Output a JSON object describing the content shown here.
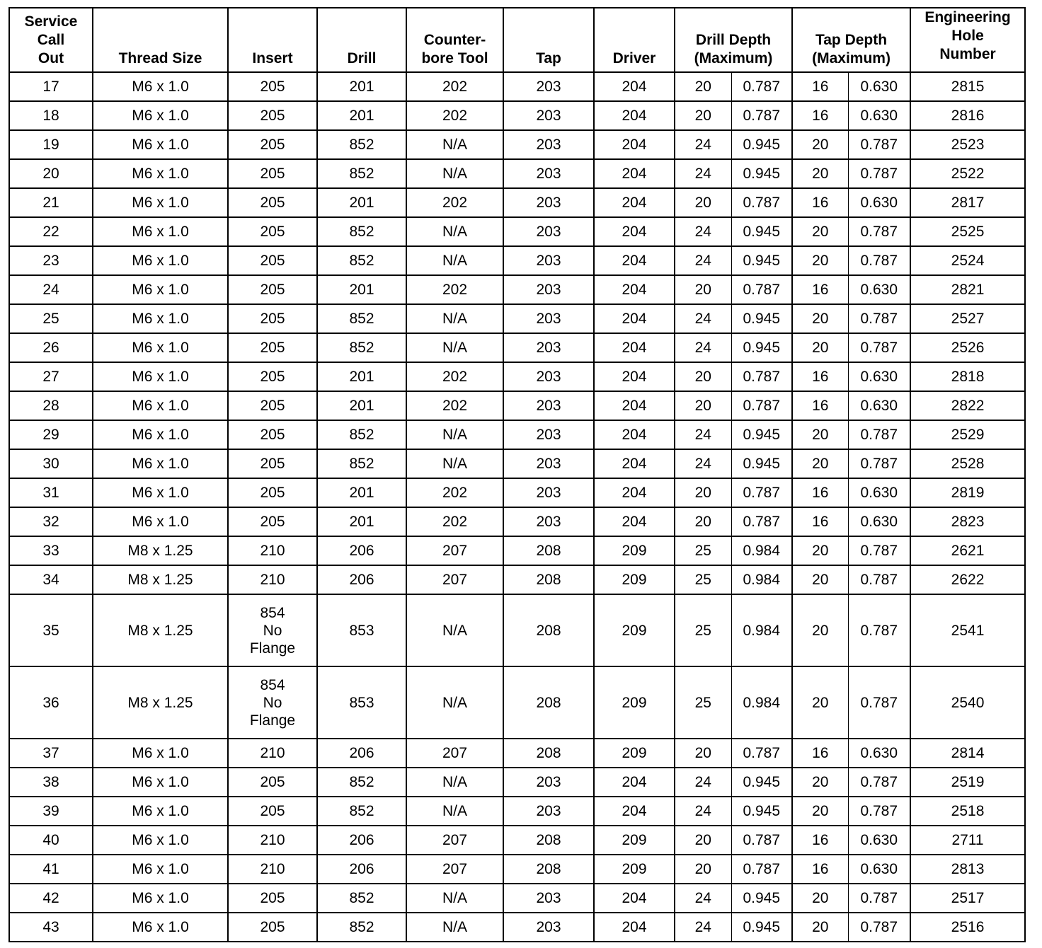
{
  "headers": [
    "Service\nCall\nOut",
    "Thread Size",
    "Insert",
    "Drill",
    "Counter-\nbore Tool",
    "Tap",
    "Driver",
    "Drill Depth\n(Maximum)",
    "Tap Depth\n(Maximum)",
    "Engineering\nHole\nNumber"
  ],
  "rows": [
    [
      "17",
      "M6 x 1.0",
      "205",
      "201",
      "202",
      "203",
      "204",
      "20",
      "0.787",
      "16",
      "0.630",
      "2815"
    ],
    [
      "18",
      "M6 x 1.0",
      "205",
      "201",
      "202",
      "203",
      "204",
      "20",
      "0.787",
      "16",
      "0.630",
      "2816"
    ],
    [
      "19",
      "M6 x 1.0",
      "205",
      "852",
      "N/A",
      "203",
      "204",
      "24",
      "0.945",
      "20",
      "0.787",
      "2523"
    ],
    [
      "20",
      "M6 x 1.0",
      "205",
      "852",
      "N/A",
      "203",
      "204",
      "24",
      "0.945",
      "20",
      "0.787",
      "2522"
    ],
    [
      "21",
      "M6 x 1.0",
      "205",
      "201",
      "202",
      "203",
      "204",
      "20",
      "0.787",
      "16",
      "0.630",
      "2817"
    ],
    [
      "22",
      "M6 x 1.0",
      "205",
      "852",
      "N/A",
      "203",
      "204",
      "24",
      "0.945",
      "20",
      "0.787",
      "2525"
    ],
    [
      "23",
      "M6 x 1.0",
      "205",
      "852",
      "N/A",
      "203",
      "204",
      "24",
      "0.945",
      "20",
      "0.787",
      "2524"
    ],
    [
      "24",
      "M6 x 1.0",
      "205",
      "201",
      "202",
      "203",
      "204",
      "20",
      "0.787",
      "16",
      "0.630",
      "2821"
    ],
    [
      "25",
      "M6 x 1.0",
      "205",
      "852",
      "N/A",
      "203",
      "204",
      "24",
      "0.945",
      "20",
      "0.787",
      "2527"
    ],
    [
      "26",
      "M6 x 1.0",
      "205",
      "852",
      "N/A",
      "203",
      "204",
      "24",
      "0.945",
      "20",
      "0.787",
      "2526"
    ],
    [
      "27",
      "M6 x 1.0",
      "205",
      "201",
      "202",
      "203",
      "204",
      "20",
      "0.787",
      "16",
      "0.630",
      "2818"
    ],
    [
      "28",
      "M6 x 1.0",
      "205",
      "201",
      "202",
      "203",
      "204",
      "20",
      "0.787",
      "16",
      "0.630",
      "2822"
    ],
    [
      "29",
      "M6 x 1.0",
      "205",
      "852",
      "N/A",
      "203",
      "204",
      "24",
      "0.945",
      "20",
      "0.787",
      "2529"
    ],
    [
      "30",
      "M6 x 1.0",
      "205",
      "852",
      "N/A",
      "203",
      "204",
      "24",
      "0.945",
      "20",
      "0.787",
      "2528"
    ],
    [
      "31",
      "M6 x 1.0",
      "205",
      "201",
      "202",
      "203",
      "204",
      "20",
      "0.787",
      "16",
      "0.630",
      "2819"
    ],
    [
      "32",
      "M6 x 1.0",
      "205",
      "201",
      "202",
      "203",
      "204",
      "20",
      "0.787",
      "16",
      "0.630",
      "2823"
    ],
    [
      "33",
      "M8 x 1.25",
      "210",
      "206",
      "207",
      "208",
      "209",
      "25",
      "0.984",
      "20",
      "0.787",
      "2621"
    ],
    [
      "34",
      "M8 x 1.25",
      "210",
      "206",
      "207",
      "208",
      "209",
      "25",
      "0.984",
      "20",
      "0.787",
      "2622"
    ],
    [
      "35",
      "M8 x 1.25",
      "854\nNo\nFlange",
      "853",
      "N/A",
      "208",
      "209",
      "25",
      "0.984",
      "20",
      "0.787",
      "2541"
    ],
    [
      "36",
      "M8 x 1.25",
      "854\nNo\nFlange",
      "853",
      "N/A",
      "208",
      "209",
      "25",
      "0.984",
      "20",
      "0.787",
      "2540"
    ],
    [
      "37",
      "M6 x 1.0",
      "210",
      "206",
      "207",
      "208",
      "209",
      "20",
      "0.787",
      "16",
      "0.630",
      "2814"
    ],
    [
      "38",
      "M6 x 1.0",
      "205",
      "852",
      "N/A",
      "203",
      "204",
      "24",
      "0.945",
      "20",
      "0.787",
      "2519"
    ],
    [
      "39",
      "M6 x 1.0",
      "205",
      "852",
      "N/A",
      "203",
      "204",
      "24",
      "0.945",
      "20",
      "0.787",
      "2518"
    ],
    [
      "40",
      "M6 x 1.0",
      "210",
      "206",
      "207",
      "208",
      "209",
      "20",
      "0.787",
      "16",
      "0.630",
      "2711"
    ],
    [
      "41",
      "M6 x 1.0",
      "210",
      "206",
      "207",
      "208",
      "209",
      "20",
      "0.787",
      "16",
      "0.630",
      "2813"
    ],
    [
      "42",
      "M6 x 1.0",
      "205",
      "852",
      "N/A",
      "203",
      "204",
      "24",
      "0.945",
      "20",
      "0.787",
      "2517"
    ],
    [
      "43",
      "M6 x 1.0",
      "205",
      "852",
      "N/A",
      "203",
      "204",
      "24",
      "0.945",
      "20",
      "0.787",
      "2516"
    ]
  ]
}
